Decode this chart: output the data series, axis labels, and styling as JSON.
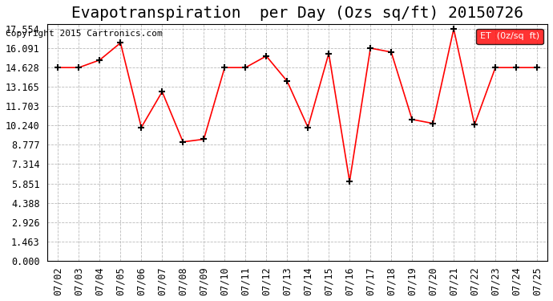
{
  "title": "Evapotranspiration  per Day (Ozs sq/ft) 20150726",
  "copyright_text": "Copyright 2015 Cartronics.com",
  "legend_label": "ET  (0z/sq  ft)",
  "x_labels": [
    "07/02",
    "07/03",
    "07/04",
    "07/05",
    "07/06",
    "07/07",
    "07/08",
    "07/09",
    "07/10",
    "07/11",
    "07/12",
    "07/13",
    "07/14",
    "07/15",
    "07/16",
    "07/17",
    "07/18",
    "07/19",
    "07/20",
    "07/21",
    "07/22",
    "07/23",
    "07/24",
    "07/25"
  ],
  "y_values": [
    14.628,
    14.628,
    15.2,
    16.5,
    10.1,
    12.8,
    9.0,
    9.2,
    14.628,
    14.628,
    15.5,
    13.6,
    10.1,
    15.7,
    6.0,
    16.1,
    15.8,
    10.7,
    10.4,
    17.554,
    10.3,
    14.628,
    14.628,
    14.628
  ],
  "line_color": "red",
  "marker_color": "black",
  "grid_color": "#aaaaaa",
  "bg_color": "white",
  "y_ticks": [
    0.0,
    1.463,
    2.926,
    4.388,
    5.851,
    7.314,
    8.777,
    10.24,
    11.703,
    13.165,
    14.628,
    16.091,
    17.554
  ],
  "legend_bg": "red",
  "legend_text_color": "white",
  "title_fontsize": 14,
  "tick_fontsize": 8.5,
  "copyright_fontsize": 8
}
